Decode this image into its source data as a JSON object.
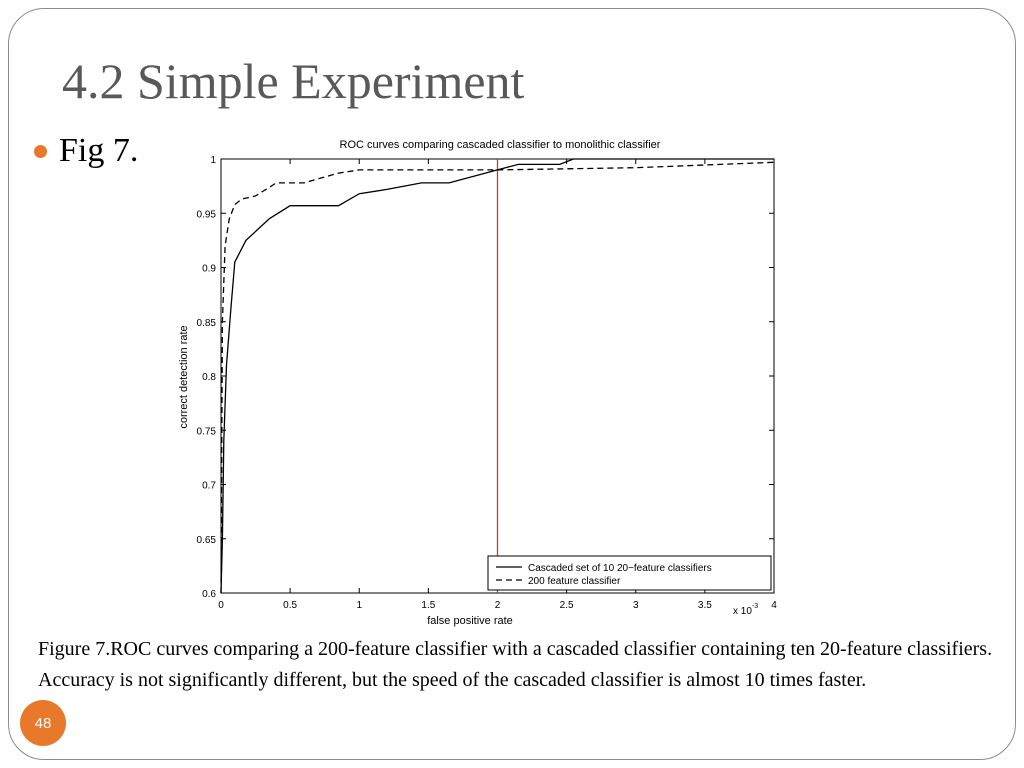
{
  "slide": {
    "title": "4.2 Simple Experiment",
    "bullet": "Fig 7.",
    "caption": "Figure 7.ROC curves comparing a 200-feature classifier with a cascaded classifier containing ten 20-feature classifiers. Accuracy is not significantly different, but the speed of the cascaded classifier is almost 10 times faster.",
    "slide_number": "48",
    "accent_color": "#e8792a"
  },
  "chart_data": {
    "type": "line",
    "title": "ROC curves comparing cascaded classifier to monolithic classifier",
    "xlabel": "false positive rate",
    "ylabel": "correct detection rate",
    "x_multiplier_label": "x 10",
    "x_multiplier_exponent": "-3",
    "xlim": [
      0,
      4
    ],
    "ylim": [
      0.6,
      1
    ],
    "xticks": [
      "0",
      "0.5",
      "1",
      "1.5",
      "2",
      "2.5",
      "3",
      "3.5",
      "4"
    ],
    "yticks": [
      "0.6",
      "0.65",
      "0.7",
      "0.75",
      "0.8",
      "0.85",
      "0.9",
      "0.95",
      "1"
    ],
    "reference_line": {
      "x": 2,
      "color": "#e03030"
    },
    "legend_position": "bottom-right",
    "series": [
      {
        "name": "Cascaded set of 10 20−feature classifiers",
        "style": "solid",
        "x": [
          0.0,
          0.01,
          0.02,
          0.04,
          0.07,
          0.1,
          0.18,
          0.35,
          0.5,
          0.85,
          1.0,
          1.2,
          1.45,
          1.65,
          2.0,
          2.15,
          2.45,
          2.55,
          4.0
        ],
        "y": [
          0.6,
          0.65,
          0.74,
          0.81,
          0.86,
          0.905,
          0.925,
          0.945,
          0.957,
          0.957,
          0.968,
          0.972,
          0.978,
          0.978,
          0.99,
          0.995,
          0.995,
          1.0,
          1.0
        ]
      },
      {
        "name": "200 feature classifier",
        "style": "dashed",
        "x": [
          0.0,
          0.01,
          0.03,
          0.06,
          0.1,
          0.15,
          0.25,
          0.4,
          0.6,
          0.85,
          1.0,
          2.0,
          3.0,
          4.0
        ],
        "y": [
          0.6,
          0.85,
          0.92,
          0.945,
          0.958,
          0.963,
          0.966,
          0.978,
          0.978,
          0.987,
          0.99,
          0.99,
          0.992,
          0.997
        ]
      }
    ]
  }
}
